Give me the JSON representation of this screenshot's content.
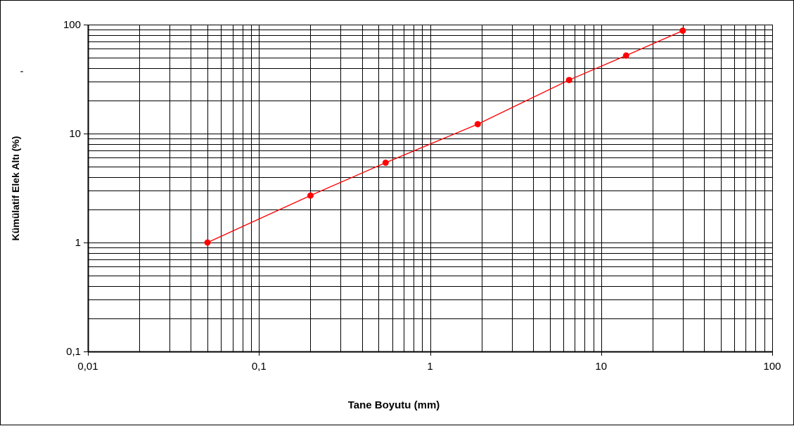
{
  "colors": {
    "series": "#ff0000",
    "grid": "#000000",
    "background": "#ffffff"
  },
  "chart_data": {
    "type": "line",
    "xscale": "log",
    "yscale": "log",
    "xlim": [
      0.01,
      100
    ],
    "ylim": [
      0.1,
      100
    ],
    "grid": true,
    "xlabel": "Tane Boyutu (mm)",
    "ylabel": "Kümülatif Elek Altı (%)",
    "small_mark": "-",
    "x_tick_labels": [
      "0,01",
      "0,1",
      "1",
      "10",
      "100"
    ],
    "y_tick_labels": [
      "0,1",
      "1",
      "10",
      "100"
    ],
    "series": [
      {
        "x": [
          0.05,
          0.2,
          0.55,
          1.9,
          6.5,
          14,
          30
        ],
        "y": [
          1.0,
          2.7,
          5.4,
          12.2,
          31,
          52,
          88
        ]
      }
    ]
  }
}
